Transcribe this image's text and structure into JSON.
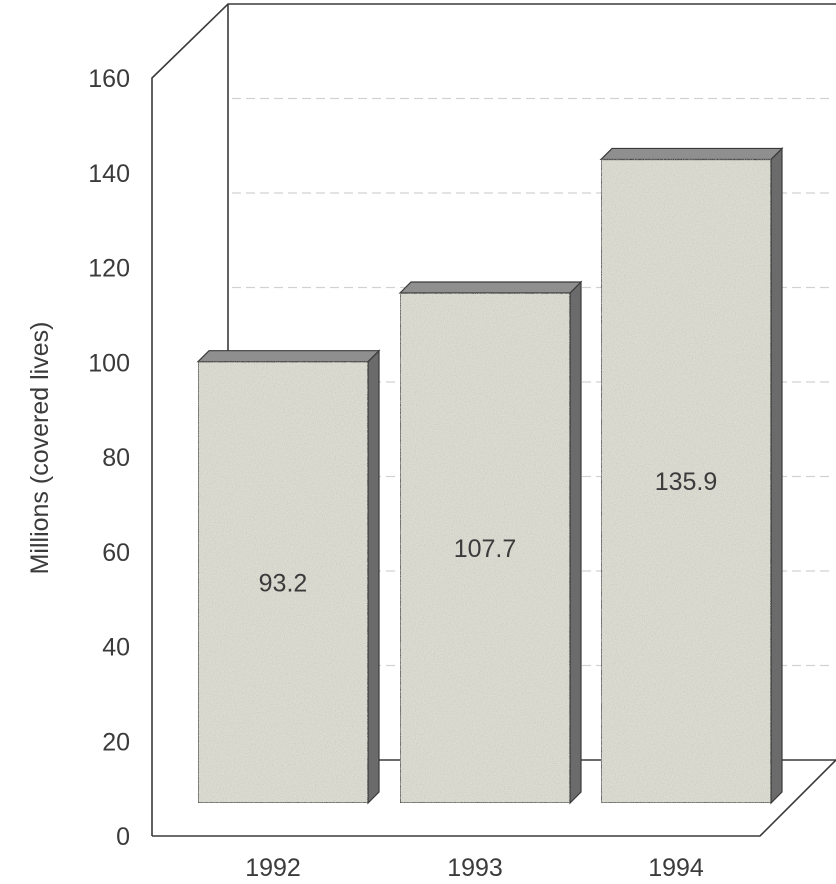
{
  "chart_data": {
    "type": "bar",
    "categories": [
      "1992",
      "1993",
      "1994"
    ],
    "values": [
      93.2,
      107.7,
      135.9
    ],
    "value_labels": [
      "93.2",
      "107.7",
      "135.9"
    ],
    "ylabel": "Millions (covered lives)",
    "ylim": [
      0,
      160
    ],
    "yticks": [
      "0",
      "20",
      "40",
      "60",
      "80",
      "100",
      "120",
      "140",
      "160"
    ],
    "grid": true,
    "style": "3d",
    "colors": {
      "bar_front": "#dcdcd2",
      "bar_top": "#8f8f8f",
      "bar_side": "#6b6b6b",
      "frame": "#3a3a3a",
      "text": "#3b3b3b"
    }
  }
}
